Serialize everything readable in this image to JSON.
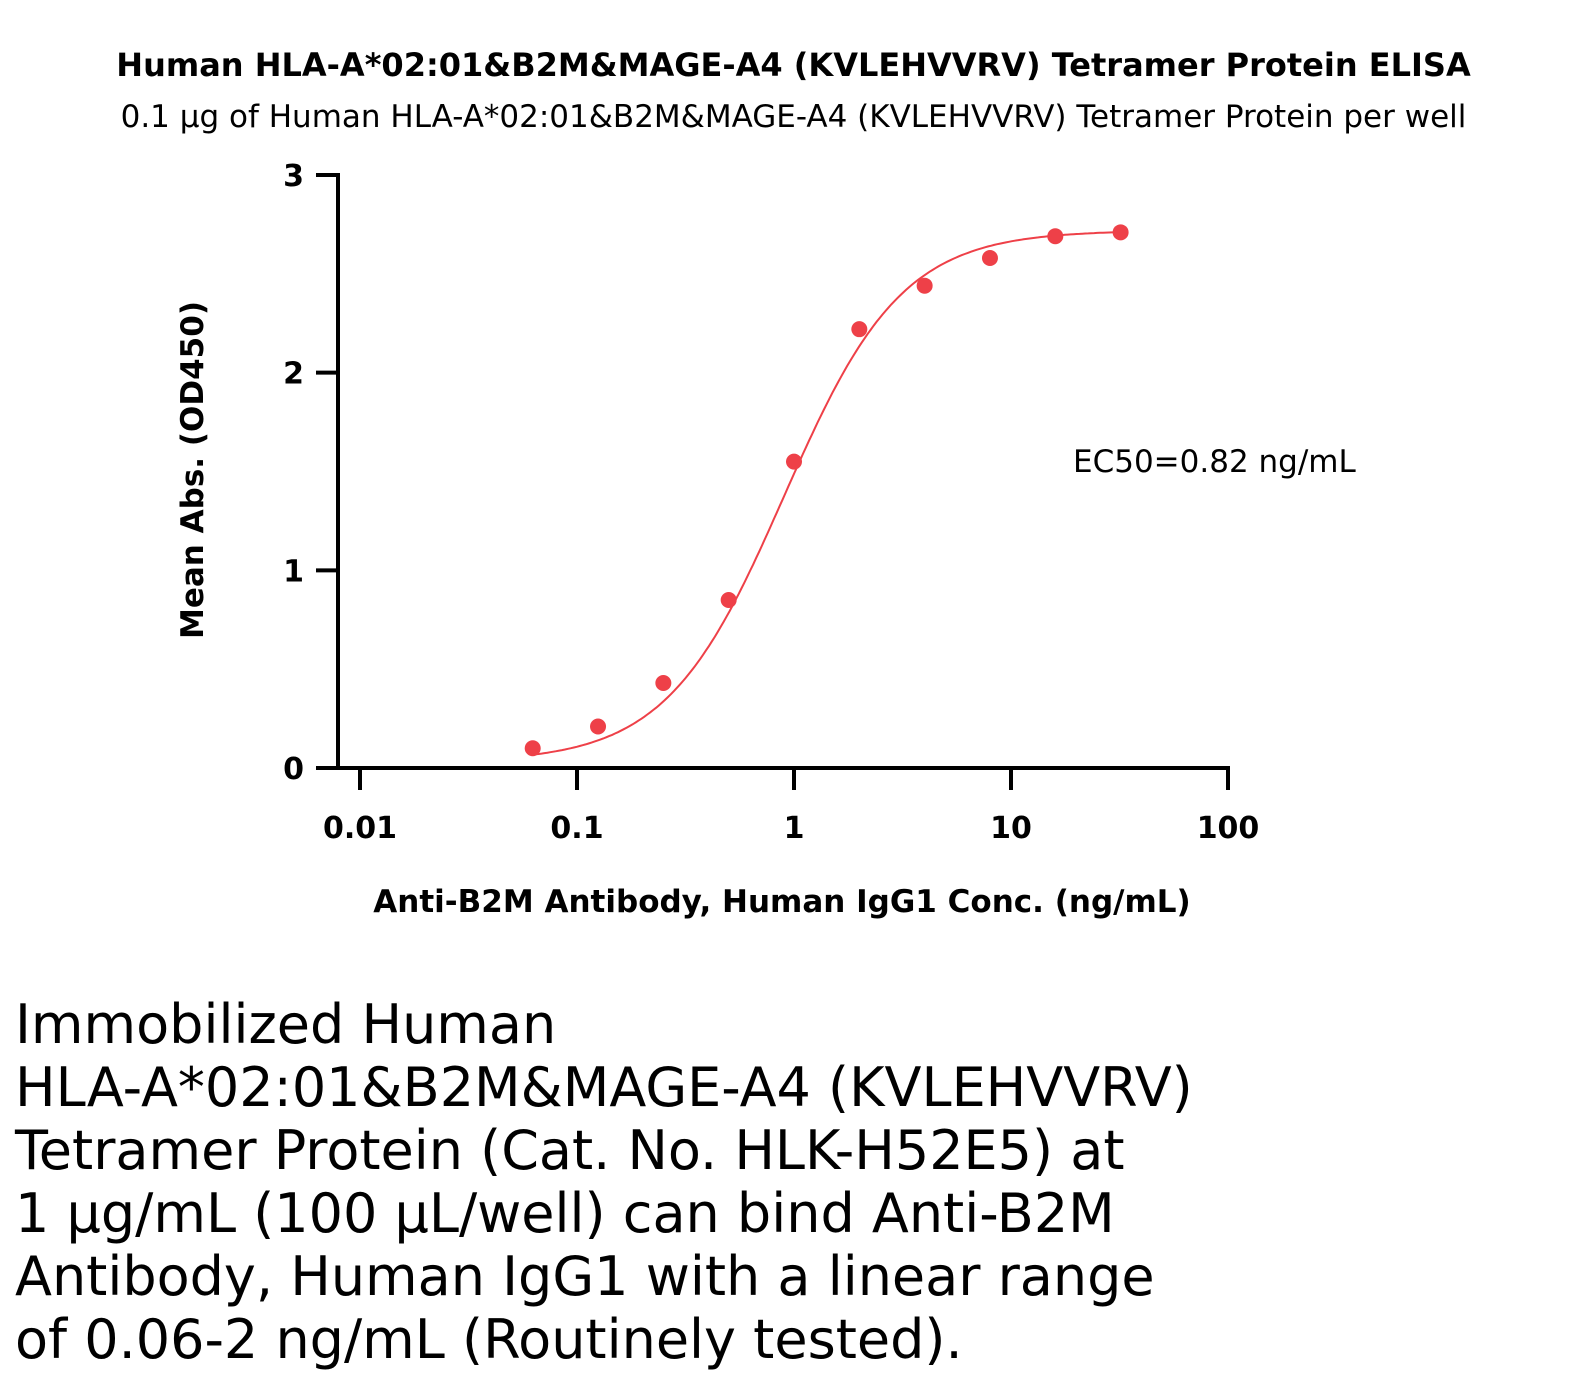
{
  "chart_data": {
    "type": "scatter",
    "title": "Human HLA-A*02:01&B2M&MAGE-A4 (KVLEHVVRV) Tetramer Protein ELISA",
    "subtitle": "0.1 µg of Human HLA-A*02:01&B2M&MAGE-A4 (KVLEHVVRV) Tetramer Protein per well",
    "xlabel": "Anti-B2M Antibody, Human IgG1 Conc. (ng/mL)",
    "ylabel": "Mean Abs. (OD450)",
    "xscale": "log",
    "xlim": [
      0.01,
      100
    ],
    "ylim": [
      0,
      3
    ],
    "x_ticks": [
      0.01,
      0.1,
      1,
      10,
      100
    ],
    "x_tick_labels": [
      "0.01",
      "0.1",
      "1",
      "10",
      "100"
    ],
    "y_ticks": [
      0,
      1,
      2,
      3
    ],
    "y_tick_labels": [
      "0",
      "1",
      "2",
      "3"
    ],
    "grid": false,
    "color": "#ee4048",
    "series": [
      {
        "x": [
          0.0625,
          0.125,
          0.25,
          0.5,
          1,
          2,
          4,
          8,
          16,
          32
        ],
        "y": [
          0.1,
          0.21,
          0.43,
          0.85,
          1.55,
          2.22,
          2.44,
          2.58,
          2.69,
          2.71
        ],
        "fit": "4PL"
      }
    ],
    "annotation": "EC50=0.82 ng/mL"
  },
  "caption": {
    "lines": [
      "Immobilized Human",
      "HLA-A*02:01&B2M&MAGE-A4 (KVLEHVVRV)",
      "Tetramer Protein (Cat. No. HLK-H52E5) at",
      "1 µg/mL (100 µL/well) can bind Anti-B2M",
      "Antibody, Human IgG1 with a linear range",
      "of 0.06-2 ng/mL (Routinely tested)."
    ]
  }
}
